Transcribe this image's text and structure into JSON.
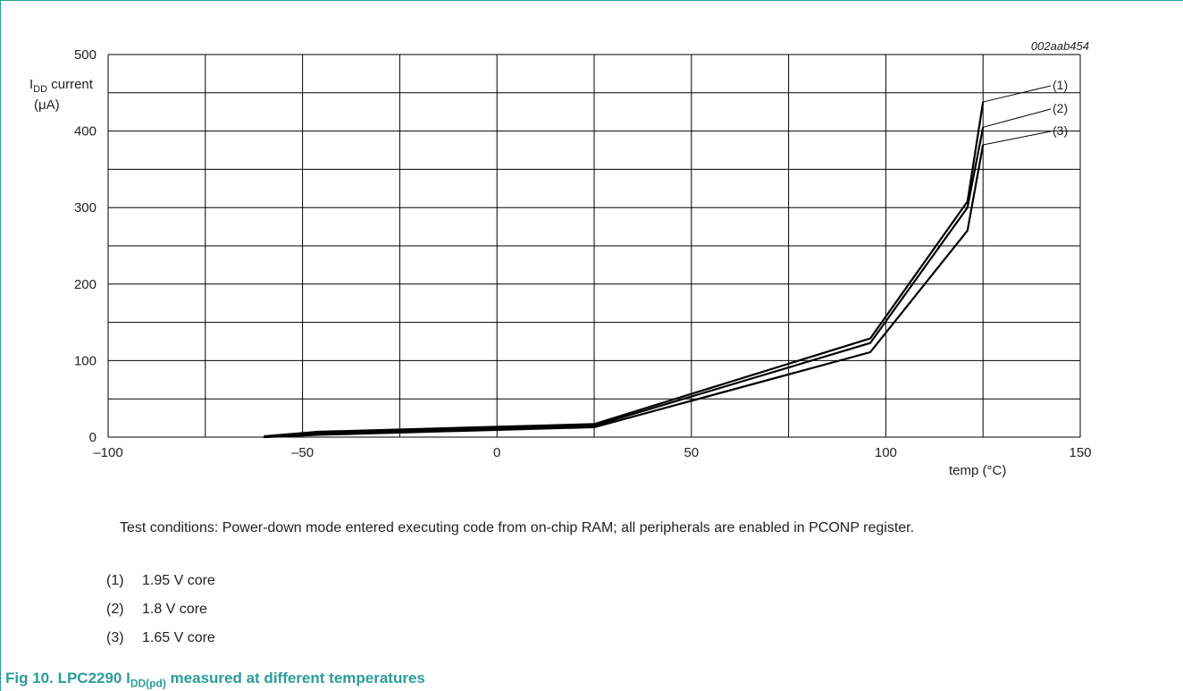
{
  "figure_id": "002aab454",
  "chart_data": {
    "type": "line",
    "xlabel": "temp (°C)",
    "ylabel_main": "I",
    "ylabel_sub": "DD",
    "ylabel_rest": " current",
    "ylabel_unit": "(μA)",
    "xlim": [
      -100,
      150
    ],
    "ylim": [
      0,
      500
    ],
    "x_ticks": [
      -100,
      -50,
      0,
      50,
      100,
      150
    ],
    "x_tick_labels": [
      "–100",
      "–50",
      "0",
      "50",
      "100",
      "150"
    ],
    "y_ticks": [
      0,
      100,
      200,
      300,
      400,
      500
    ],
    "y_tick_labels": [
      "0",
      "100",
      "200",
      "300",
      "400",
      "500"
    ],
    "x_grid_step": 25,
    "y_grid_step": 50,
    "grid": true,
    "series": [
      {
        "name": "(1)",
        "x": [
          -60,
          -46,
          25,
          96,
          121,
          125
        ],
        "y": [
          1,
          7,
          17,
          129,
          308,
          438
        ]
      },
      {
        "name": "(2)",
        "x": [
          -60,
          -46,
          25,
          96,
          121,
          125
        ],
        "y": [
          0,
          5,
          15,
          123,
          300,
          405
        ]
      },
      {
        "name": "(3)",
        "x": [
          -60,
          -46,
          25,
          96,
          121,
          125
        ],
        "y": [
          0,
          3,
          13,
          111,
          270,
          382
        ]
      }
    ],
    "series_labels": [
      "(1)",
      "(2)",
      "(3)"
    ]
  },
  "test_conditions": "Test conditions: Power-down mode entered executing code from on-chip RAM; all peripherals are enabled in PCONP register.",
  "legend": [
    {
      "num": "(1)",
      "text": "1.95 V core"
    },
    {
      "num": "(2)",
      "text": "1.8 V core"
    },
    {
      "num": "(3)",
      "text": "1.65 V core"
    }
  ],
  "caption": {
    "prefix": "Fig 10.  LPC2290 I",
    "sub": "DD(pd)",
    "suffix": " measured at different temperatures"
  },
  "colors": {
    "accent": "#2a9d9b",
    "line": "#000000",
    "grid": "#000000"
  }
}
